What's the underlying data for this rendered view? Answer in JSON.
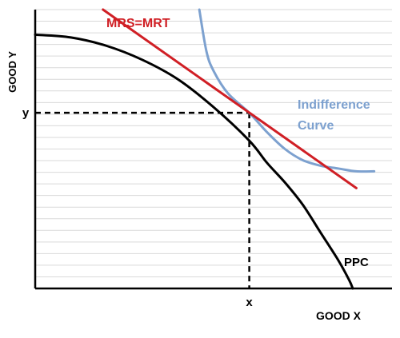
{
  "chart_data": {
    "type": "line",
    "title": "",
    "xlabel": "GOOD X",
    "ylabel": "GOOD Y",
    "grid": true,
    "xlim": [
      0,
      1
    ],
    "ylim": [
      0,
      1
    ],
    "series": [
      {
        "name": "PPC",
        "color": "#000000",
        "x": [
          0,
          0.1,
          0.2,
          0.3,
          0.4,
          0.5,
          0.6,
          0.65,
          0.7,
          0.75,
          0.8,
          0.85,
          0.88,
          0.89
        ],
        "y": [
          0.91,
          0.9,
          0.87,
          0.82,
          0.75,
          0.65,
          0.53,
          0.45,
          0.38,
          0.3,
          0.2,
          0.1,
          0.03,
          0.0
        ]
      },
      {
        "name": "Indifference Curve",
        "color": "#7da1cf",
        "x": [
          0.46,
          0.48,
          0.5,
          0.54,
          0.6,
          0.65,
          0.7,
          0.75,
          0.8,
          0.85,
          0.9,
          0.95
        ],
        "y": [
          1.0,
          0.85,
          0.78,
          0.7,
          0.63,
          0.56,
          0.5,
          0.46,
          0.44,
          0.43,
          0.42,
          0.42
        ]
      },
      {
        "name": "MRS=MRT",
        "color": "#d01f25",
        "x": [
          0.19,
          0.9
        ],
        "y": [
          1.0,
          0.36
        ]
      }
    ],
    "tangency_point": {
      "x": 0.6,
      "y": 0.63
    },
    "axis_tick_labels": {
      "x": "x",
      "y": "y"
    }
  }
}
